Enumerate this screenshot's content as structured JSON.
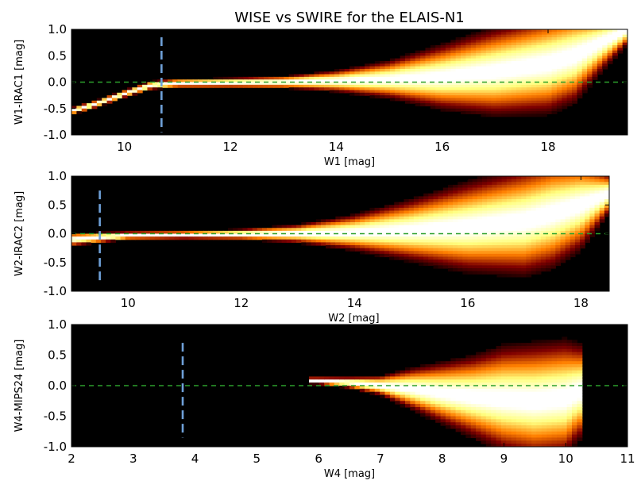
{
  "chart_data": {
    "title": "WISE vs SWIRE for the ELAIS-N1",
    "type": "heatmap",
    "colormap": "afmhot (black → red → orange → yellow → white)",
    "colors": {
      "background": "#000000",
      "reference_line": "#2ca02c",
      "limit_line": "#6fa0d8"
    },
    "panels": [
      {
        "xlabel": "W1 [mag]",
        "ylabel": "W1-IRAC1 [mag]",
        "xlim": [
          9.0,
          19.5
        ],
        "ylim": [
          -1.0,
          1.0
        ],
        "xticks": [
          10,
          12,
          14,
          16,
          18
        ],
        "yticks": [
          1.0,
          0.5,
          0.0,
          -0.5,
          -1.0
        ],
        "reference_line_y": 0.0,
        "limit_line_x": 10.7,
        "limit_line_yrange": [
          -0.95,
          0.85
        ],
        "density_ridge": {
          "x": [
            9.0,
            9.5,
            10.0,
            10.5,
            11.0,
            12.0,
            13.0,
            14.0,
            15.0,
            16.0,
            17.0,
            18.0,
            18.5,
            19.0,
            19.5
          ],
          "center": [
            -0.55,
            -0.4,
            -0.22,
            -0.06,
            -0.02,
            -0.01,
            0.0,
            0.02,
            0.05,
            0.1,
            0.2,
            0.35,
            0.5,
            0.75,
            1.0
          ],
          "spread": [
            0.06,
            0.06,
            0.06,
            0.07,
            0.07,
            0.08,
            0.1,
            0.18,
            0.32,
            0.55,
            0.75,
            0.85,
            0.8,
            0.5,
            0.25
          ]
        }
      },
      {
        "xlabel": "W2 [mag]",
        "ylabel": "W2-IRAC2 [mag]",
        "xlim": [
          9.0,
          18.5
        ],
        "ylim": [
          -1.0,
          1.0
        ],
        "xticks": [
          10,
          12,
          14,
          16,
          18
        ],
        "yticks": [
          1.0,
          0.5,
          0.0,
          -0.5,
          -1.0
        ],
        "reference_line_y": 0.0,
        "limit_line_x": 9.5,
        "limit_line_yrange": [
          -0.85,
          0.75
        ],
        "density_ridge": {
          "x": [
            9.0,
            10.0,
            11.0,
            12.0,
            13.0,
            14.0,
            15.0,
            16.0,
            17.0,
            17.5,
            18.0,
            18.5
          ],
          "center": [
            -0.1,
            -0.03,
            -0.02,
            -0.01,
            0.0,
            0.02,
            0.06,
            0.12,
            0.22,
            0.35,
            0.5,
            0.7
          ],
          "spread": [
            0.1,
            0.06,
            0.06,
            0.08,
            0.14,
            0.28,
            0.48,
            0.7,
            0.85,
            0.85,
            0.7,
            0.3
          ]
        }
      },
      {
        "xlabel": "W4 [mag]",
        "ylabel": "W4-MIPS24 [mag]",
        "xlim": [
          2.0,
          11.0
        ],
        "ylim": [
          -1.0,
          1.0
        ],
        "xticks": [
          2,
          3,
          4,
          5,
          6,
          7,
          8,
          9,
          10,
          11
        ],
        "yticks": [
          1.0,
          0.5,
          0.0,
          -0.5,
          -1.0
        ],
        "reference_line_y": 0.0,
        "limit_line_x": 3.8,
        "limit_line_yrange": [
          -0.85,
          0.7
        ],
        "density_ridge": {
          "x": [
            6.0,
            6.5,
            7.0,
            7.5,
            8.0,
            8.5,
            9.0,
            9.5,
            10.0,
            10.2
          ],
          "center": [
            0.08,
            0.05,
            0.0,
            -0.05,
            -0.12,
            -0.18,
            -0.22,
            -0.25,
            -0.2,
            -0.1
          ],
          "spread": [
            0.05,
            0.08,
            0.14,
            0.3,
            0.45,
            0.6,
            0.78,
            0.85,
            0.85,
            0.7
          ]
        }
      }
    ]
  }
}
